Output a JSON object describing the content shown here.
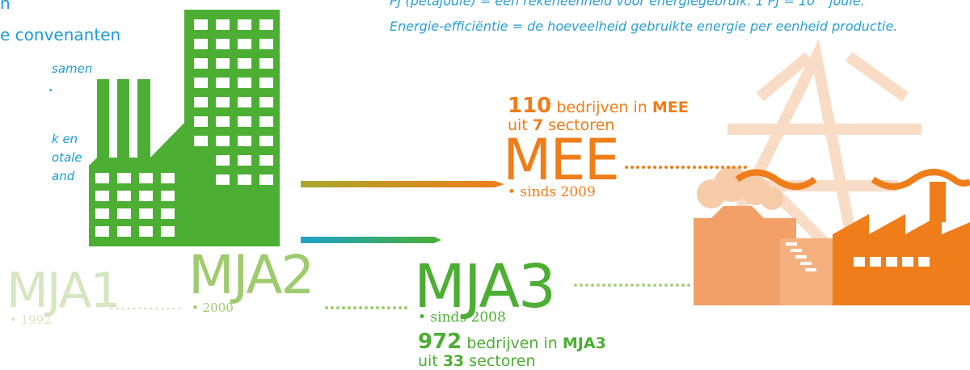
{
  "intro": {
    "title_fragment": "n",
    "subtitle_fragment": "e convenanten",
    "notes": [
      "samen",
      ".",
      "k en",
      "otale",
      "and"
    ]
  },
  "definitions": {
    "pj": {
      "text": "PJ (petajoule) = een rekeneenheid voor energiegebruik. 1 PJ = 10",
      "sup": "15",
      "tail": " joule."
    },
    "efficiency": "Energie-efficiëntie = de hoeveelheid gebruikte energie per eenheid productie."
  },
  "mee": {
    "count": "110",
    "count_text": " bedrijven in ",
    "count_name": "MEE",
    "sectors_pre": "uit ",
    "sectors_num": "7",
    "sectors_post": " sectoren",
    "label": "MEE",
    "since": "• sinds 2009"
  },
  "mja1": {
    "label": "MJA1",
    "since": "• 1992"
  },
  "mja2": {
    "label": "MJA2",
    "since": "• 2000"
  },
  "mja3": {
    "label": "MJA3",
    "since": "• sinds 2008",
    "count": "972",
    "count_text": " bedrijven in ",
    "count_name": "MJA3",
    "sectors_pre": "uit ",
    "sectors_num": "33",
    "sectors_post": " sectoren"
  }
}
